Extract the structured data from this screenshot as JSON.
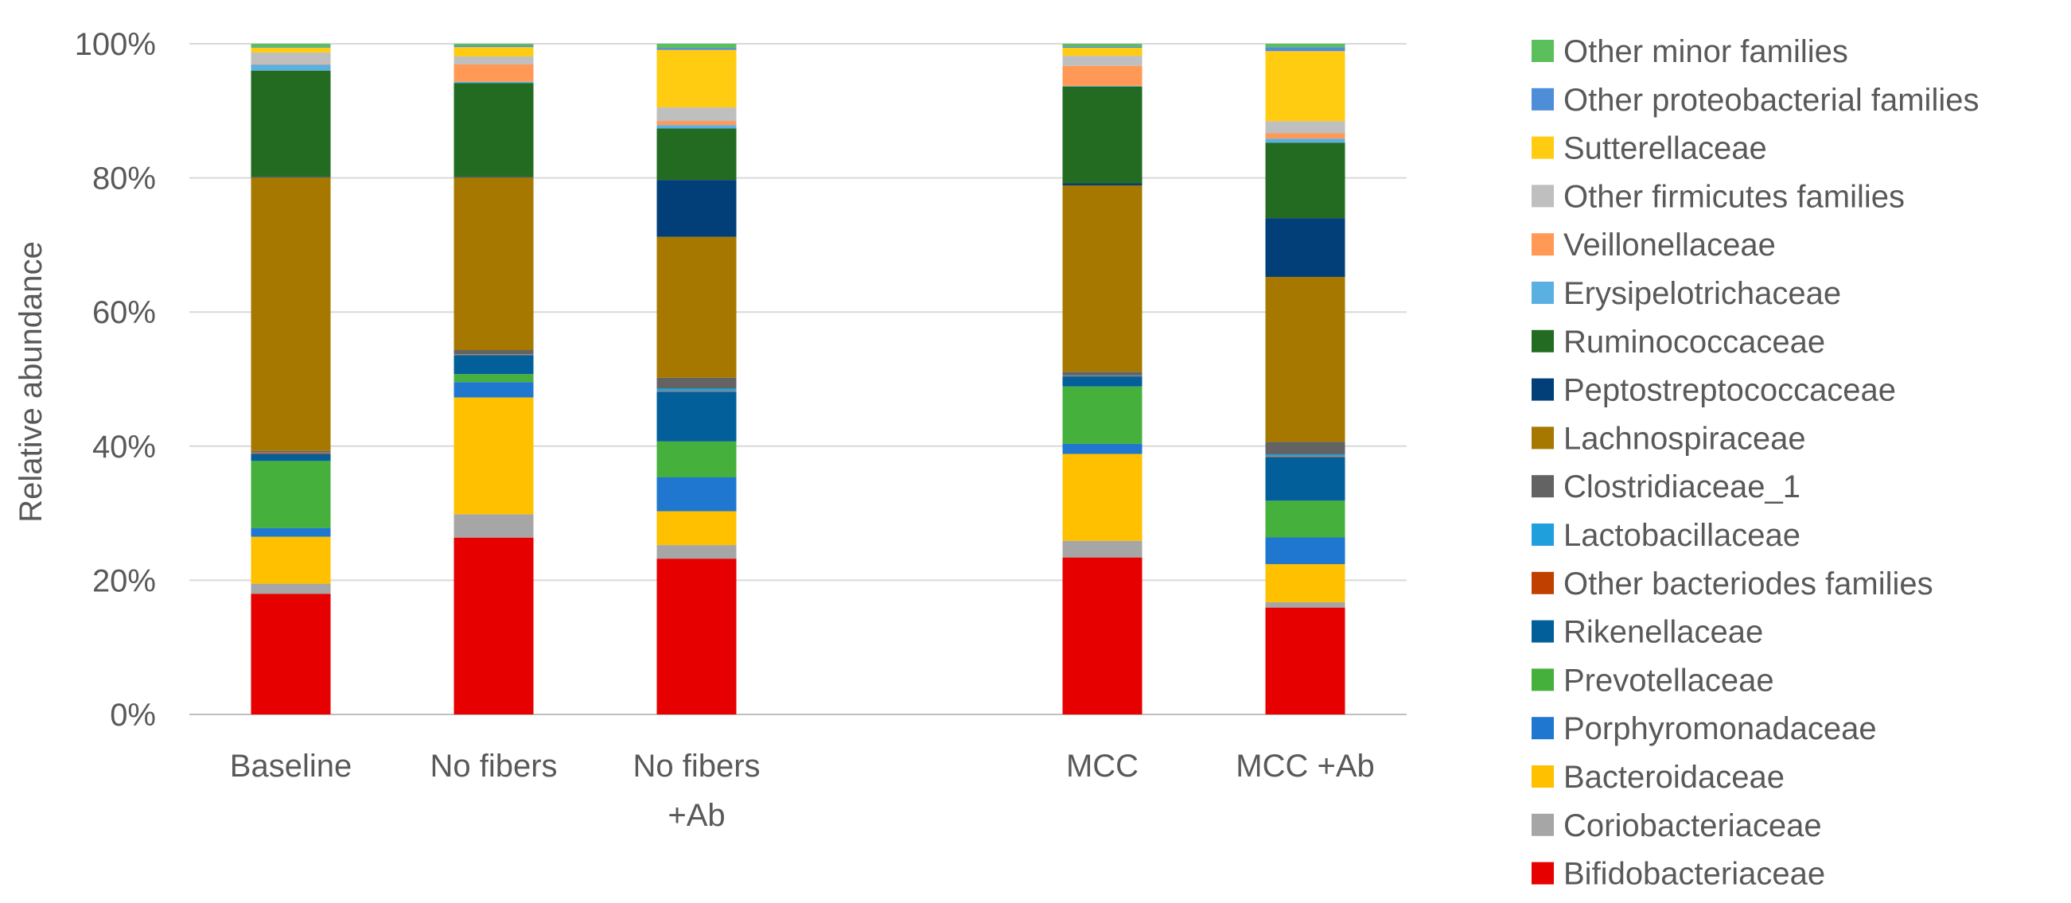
{
  "chart_data": {
    "type": "bar",
    "stacked": true,
    "stack_normalized": true,
    "title": "",
    "xlabel": "",
    "ylabel": "Relative abundance",
    "ylim": [
      0,
      100
    ],
    "y_ticks": [
      "0%",
      "20%",
      "40%",
      "60%",
      "80%",
      "100%"
    ],
    "grid": true,
    "legend_position": "right",
    "categories": [
      {
        "lines": [
          "Baseline"
        ]
      },
      {
        "lines": [
          "No fibers"
        ]
      },
      {
        "lines": [
          "No fibers",
          "+Ab"
        ]
      },
      {
        "lines": [
          ""
        ]
      },
      {
        "lines": [
          "MCC"
        ]
      },
      {
        "lines": [
          "MCC +Ab"
        ]
      }
    ],
    "series": [
      {
        "name": "Bifidobacteriaceae",
        "color": "#E60000",
        "values": [
          18.0,
          26.5,
          23.0,
          null,
          23.5,
          16.0
        ]
      },
      {
        "name": "Coriobacteriaceae",
        "color": "#A6A6A6",
        "values": [
          1.5,
          3.5,
          2.0,
          null,
          2.5,
          0.8
        ]
      },
      {
        "name": "Bacteroidaceae",
        "color": "#FFC000",
        "values": [
          7.0,
          17.5,
          5.0,
          null,
          13.0,
          5.7
        ]
      },
      {
        "name": "Porphyromonadaceae",
        "color": "#1F77D0",
        "values": [
          1.3,
          2.3,
          5.0,
          null,
          1.5,
          4.0
        ]
      },
      {
        "name": "Prevotellaceae",
        "color": "#45B03B",
        "values": [
          10.0,
          1.2,
          5.3,
          null,
          8.6,
          5.5
        ]
      },
      {
        "name": "Rikenellaceae",
        "color": "#025F9A",
        "values": [
          1.0,
          2.8,
          7.3,
          null,
          1.5,
          6.5
        ]
      },
      {
        "name": "Other bacteriodes families",
        "color": "#C04000",
        "values": [
          0.2,
          0.1,
          0.1,
          null,
          0.1,
          0.1
        ]
      },
      {
        "name": "Lactobacillaceae",
        "color": "#1FA0DD",
        "values": [
          0.1,
          0.1,
          0.4,
          null,
          0.1,
          0.3
        ]
      },
      {
        "name": "Clostridiaceae_1",
        "color": "#636363",
        "values": [
          0.2,
          0.6,
          1.6,
          null,
          0.5,
          1.9
        ]
      },
      {
        "name": "Lachnospiraceae",
        "color": "#A67800",
        "values": [
          40.8,
          25.9,
          20.8,
          null,
          27.9,
          24.7
        ]
      },
      {
        "name": "Peptostreptococcaceae",
        "color": "#023F78",
        "values": [
          0.1,
          0.1,
          8.4,
          null,
          0.3,
          8.8
        ]
      },
      {
        "name": "Ruminococcaceae",
        "color": "#226B21",
        "values": [
          15.8,
          14.0,
          7.6,
          null,
          14.5,
          11.3
        ]
      },
      {
        "name": "Erysipelotrichaceae",
        "color": "#5BB0E2",
        "values": [
          0.9,
          0.2,
          0.5,
          null,
          0.1,
          0.6
        ]
      },
      {
        "name": "Veillonellaceae",
        "color": "#FF9955",
        "values": [
          0.1,
          2.6,
          0.6,
          null,
          3.0,
          0.8
        ]
      },
      {
        "name": "Other firmicutes families",
        "color": "#BFBFBF",
        "values": [
          1.7,
          1.2,
          2.0,
          null,
          1.5,
          1.8
        ]
      },
      {
        "name": "Sutterellaceae",
        "color": "#FFCC11",
        "values": [
          0.7,
          1.4,
          8.5,
          null,
          1.2,
          10.5
        ]
      },
      {
        "name": "Other proteobacterial families",
        "color": "#4E8DD8",
        "values": [
          0.1,
          0.2,
          0.3,
          null,
          0.2,
          0.6
        ]
      },
      {
        "name": "Other minor families",
        "color": "#5BC05B",
        "values": [
          0.5,
          0.3,
          0.6,
          null,
          0.4,
          0.5
        ]
      }
    ]
  }
}
